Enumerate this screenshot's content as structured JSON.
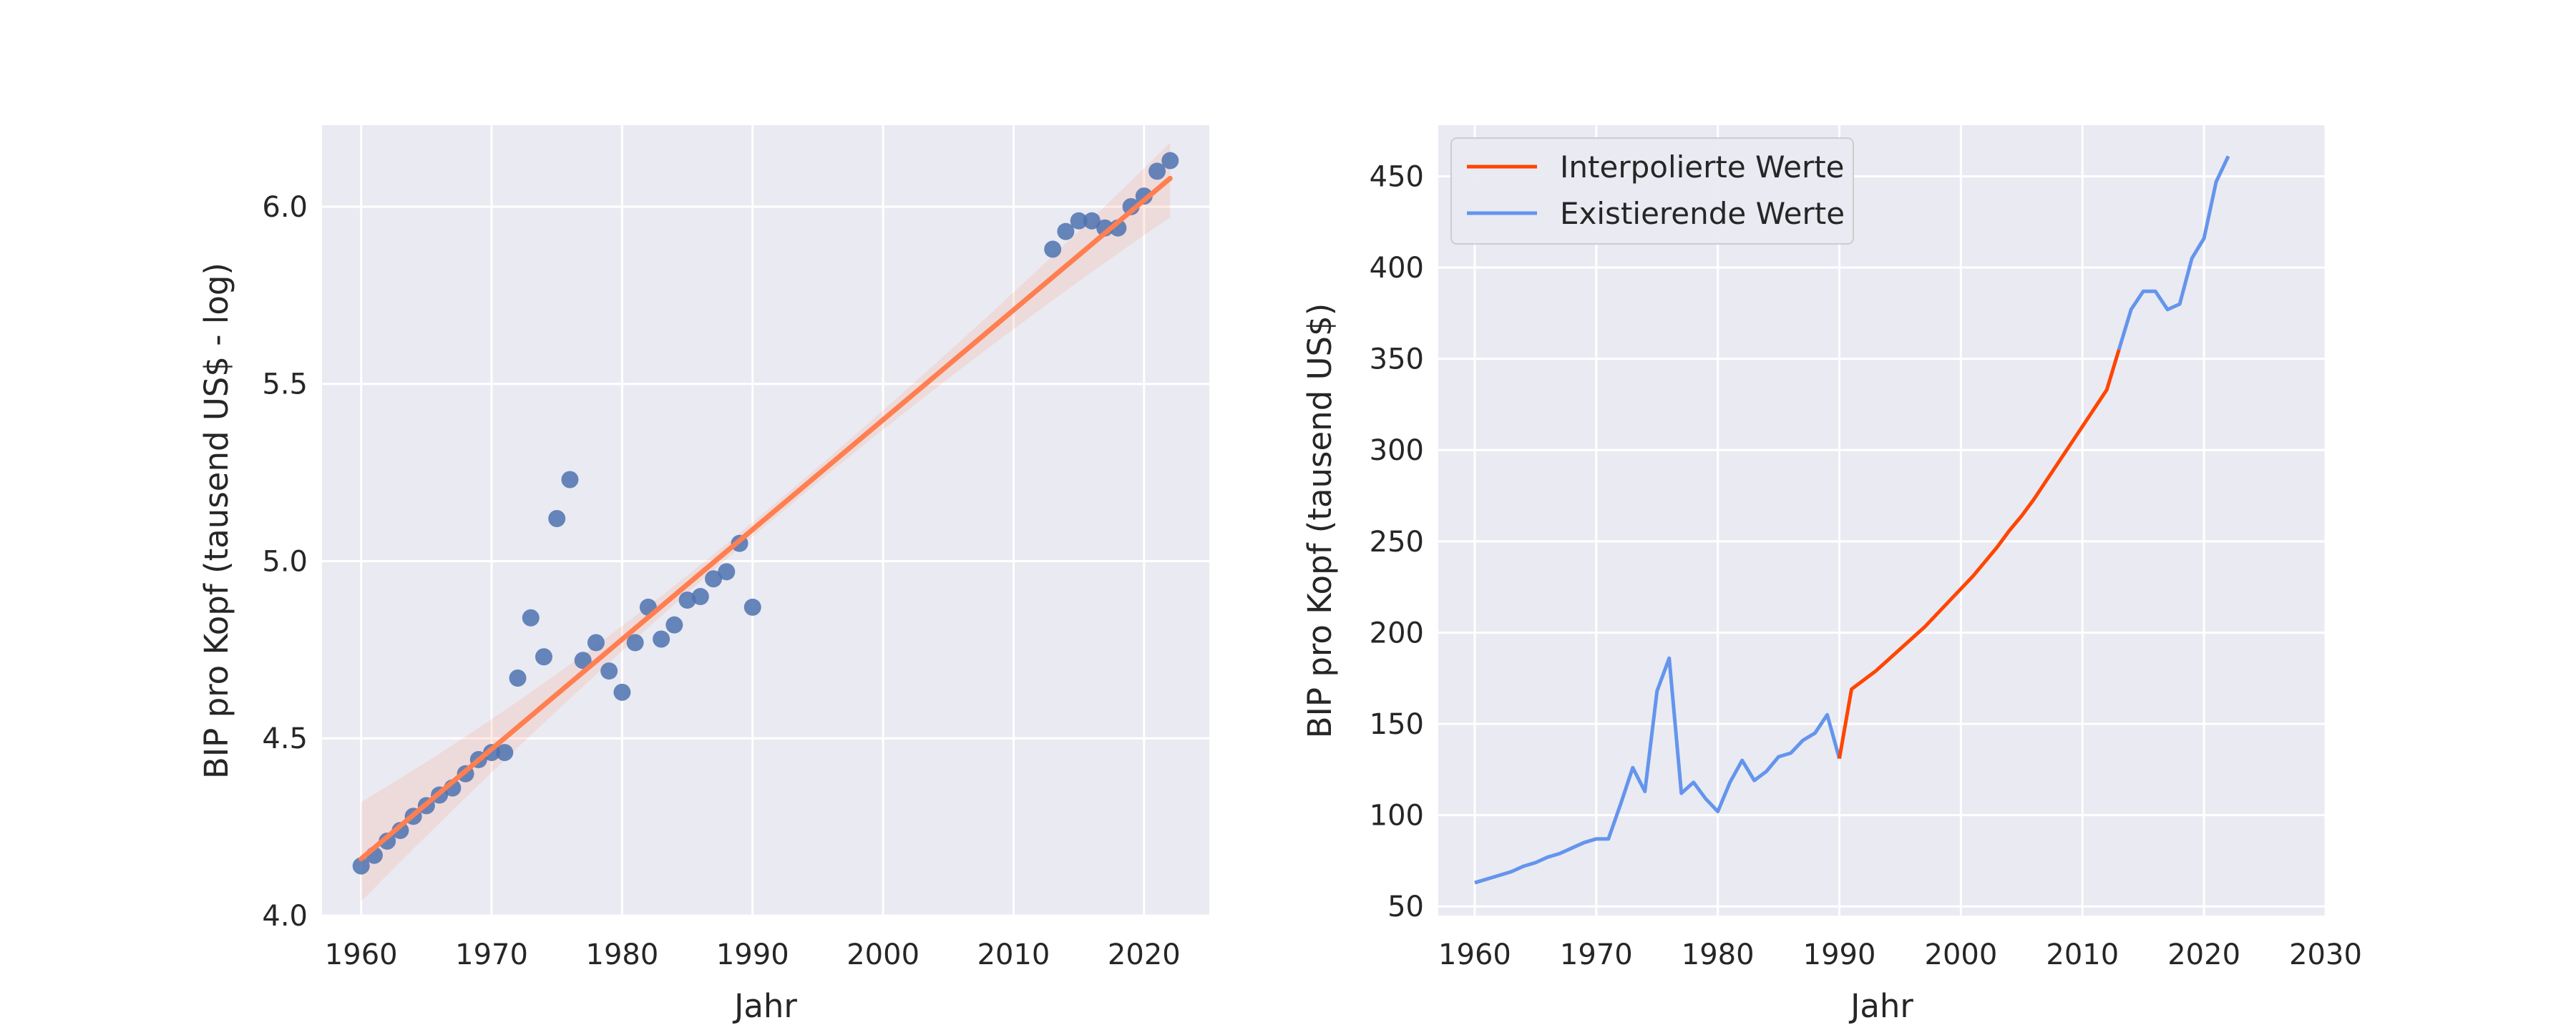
{
  "chart_data": [
    {
      "type": "scatter",
      "xlabel": "Jahr",
      "ylabel": "BIP pro Kopf (tausend US$ - log)",
      "xlim": [
        1957,
        2025
      ],
      "ylim": [
        4.0,
        6.23
      ],
      "xticks": [
        1960,
        1970,
        1980,
        1990,
        2000,
        2010,
        2020
      ],
      "yticks": [
        4.0,
        4.5,
        5.0,
        5.5,
        6.0
      ],
      "ytick_labels": [
        "4.0",
        "4.5",
        "5.0",
        "5.5",
        "6.0"
      ],
      "grid": true,
      "series": [
        {
          "kind": "points",
          "color": "#4c72b0",
          "x": [
            1960,
            1961,
            1962,
            1963,
            1964,
            1965,
            1966,
            1967,
            1968,
            1969,
            1970,
            1971,
            1972,
            1973,
            1974,
            1975,
            1976,
            1977,
            1978,
            1979,
            1980,
            1981,
            1982,
            1983,
            1984,
            1985,
            1986,
            1987,
            1988,
            1989,
            1990,
            2013,
            2014,
            2015,
            2016,
            2017,
            2018,
            2019,
            2020,
            2021,
            2022
          ],
          "y": [
            4.14,
            4.17,
            4.21,
            4.24,
            4.28,
            4.31,
            4.34,
            4.36,
            4.4,
            4.44,
            4.46,
            4.46,
            4.67,
            4.84,
            4.73,
            5.12,
            5.23,
            4.72,
            4.77,
            4.69,
            4.63,
            4.77,
            4.87,
            4.78,
            4.82,
            4.89,
            4.9,
            4.95,
            4.97,
            5.05,
            4.87,
            5.88,
            5.93,
            5.96,
            5.96,
            5.94,
            5.94,
            6.0,
            6.03,
            6.1,
            6.13
          ]
        },
        {
          "kind": "regression",
          "color": "#ff7f50",
          "x": [
            1960,
            2022
          ],
          "y": [
            4.16,
            6.08
          ],
          "ci_upper": [
            4.3,
            6.16
          ],
          "ci_lower": [
            4.06,
            5.99
          ]
        }
      ]
    },
    {
      "type": "line",
      "xlabel": "Jahr",
      "ylabel": "BIP pro Kopf (tausend US$)",
      "xlim": [
        1957,
        2030
      ],
      "ylim": [
        45,
        478
      ],
      "xticks": [
        1960,
        1970,
        1980,
        1990,
        2000,
        2010,
        2020,
        2030
      ],
      "yticks": [
        50,
        100,
        150,
        200,
        250,
        300,
        350,
        400,
        450
      ],
      "grid": true,
      "legend": {
        "placement": "top-left"
      },
      "series": [
        {
          "name": "Interpolierte Werte",
          "color": "#ff4500",
          "x": [
            1990,
            1991,
            1992,
            1993,
            1994,
            1995,
            1996,
            1997,
            1998,
            1999,
            2000,
            2001,
            2002,
            2003,
            2004,
            2005,
            2006,
            2007,
            2008,
            2009,
            2010,
            2011,
            2012,
            2013
          ],
          "y": [
            131,
            169,
            174,
            179,
            185,
            191,
            197,
            203,
            210,
            217,
            224,
            231,
            239,
            247,
            256,
            264,
            273,
            283,
            293,
            303,
            313,
            323,
            333,
            355
          ]
        },
        {
          "name": "Existierende Werte",
          "color": "#6495ed",
          "x": [
            1960,
            1961,
            1962,
            1963,
            1964,
            1965,
            1966,
            1967,
            1968,
            1969,
            1970,
            1971,
            1972,
            1973,
            1974,
            1975,
            1976,
            1977,
            1978,
            1979,
            1980,
            1981,
            1982,
            1983,
            1984,
            1985,
            1986,
            1987,
            1988,
            1989,
            1990,
            2013,
            2014,
            2015,
            2016,
            2017,
            2018,
            2019,
            2020,
            2021,
            2022
          ],
          "y": [
            63,
            65,
            67,
            69,
            72,
            74,
            77,
            79,
            82,
            85,
            87,
            87,
            106,
            126,
            113,
            168,
            186,
            112,
            118,
            109,
            102,
            118,
            130,
            119,
            124,
            132,
            134,
            141,
            145,
            155,
            131,
            355,
            377,
            387,
            387,
            377,
            380,
            405,
            416,
            447,
            461
          ]
        }
      ]
    }
  ]
}
